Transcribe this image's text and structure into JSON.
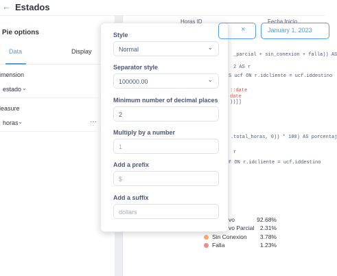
{
  "header": {
    "title": "Estados"
  },
  "sidebar": {
    "title": "Pie options",
    "tabs": [
      "Data",
      "Display"
    ],
    "sections": [
      {
        "label": "imension",
        "field": "estado"
      },
      {
        "label": "leasure",
        "field": "horas"
      }
    ]
  },
  "filters": [
    {
      "label": "Horas ID"
    },
    {
      "label": "Fecha Inicio",
      "value": "January 1, 2023"
    }
  ],
  "code": [
    {
      "text": "_parcial + sin_conexion + falla)) AS",
      "color": "#4c5773"
    },
    {
      "text": "2 AS r",
      "color": "#4c5773"
    },
    {
      "text": "S ucf ON r.idcliente = ucf.iddestino",
      "color": "#4c5773"
    },
    {
      "text": "::date",
      "color": "#d9534f"
    },
    {
      "text": "date",
      "color": "#d9534f"
    },
    {
      "text": "))]]",
      "color": "#4c5773"
    },
    {
      "text": ".total_horas, 0)) * 100) AS porcentaj",
      "color": "#4c5773"
    },
    {
      "text": "r",
      "color": "#4c5773"
    },
    {
      "text": "F ON r.idcliente = ucf.iddestino",
      "color": "#4c5773"
    }
  ],
  "legend": [
    {
      "label": "vo",
      "value": "92.68%"
    },
    {
      "label": "vo Parcial",
      "value": "2.31%"
    },
    {
      "label": "Sin Conexion",
      "value": "3.78%",
      "color": "#f2a86f"
    },
    {
      "label": "Falla",
      "value": "1.23%",
      "color": "#ed8c8c"
    }
  ],
  "popover": {
    "fields": [
      {
        "label": "Style",
        "value": "Normal",
        "kind": "select"
      },
      {
        "label": "Separator style",
        "value": "100000.00",
        "kind": "select"
      },
      {
        "label": "Minimum number of decimal places",
        "value": "2",
        "kind": "input"
      },
      {
        "label": "Multiply by a number",
        "placeholder": "1",
        "kind": "input"
      },
      {
        "label": "Add a prefix",
        "placeholder": "$",
        "kind": "input"
      },
      {
        "label": "Add a suffix",
        "placeholder": "dollars",
        "kind": "input"
      }
    ]
  }
}
